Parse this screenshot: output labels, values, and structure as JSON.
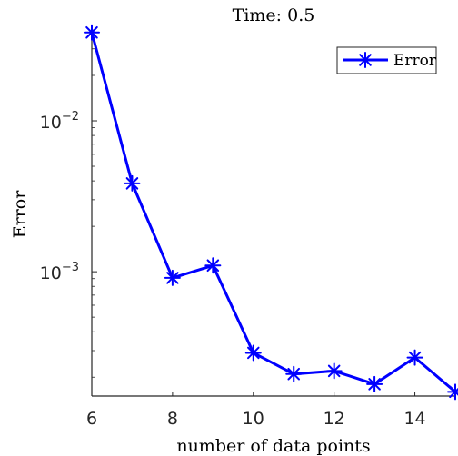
{
  "chart_data": {
    "type": "line",
    "title": "Time: 0.5",
    "xlabel": "number of data points",
    "ylabel": "Error",
    "xlim": [
      6,
      15
    ],
    "ylim": [
      0.00015,
      0.04
    ],
    "yscale": "log",
    "grid": false,
    "legend_position": "top-right",
    "x_ticks": [
      6,
      8,
      10,
      12,
      14
    ],
    "y_ticks": [
      {
        "value": 0.01,
        "base": "10",
        "exponent": "−2"
      },
      {
        "value": 0.001,
        "base": "10",
        "exponent": "−3"
      }
    ],
    "series": [
      {
        "name": "Error",
        "color": "#0000ff",
        "marker": "asterisk",
        "x": [
          6,
          7,
          8,
          9,
          10,
          11,
          12,
          13,
          14,
          15
        ],
        "y": [
          0.0385,
          0.00385,
          0.00091,
          0.0011,
          0.00029,
          0.00021,
          0.00022,
          0.00018,
          0.00027,
          0.00016
        ]
      }
    ]
  }
}
